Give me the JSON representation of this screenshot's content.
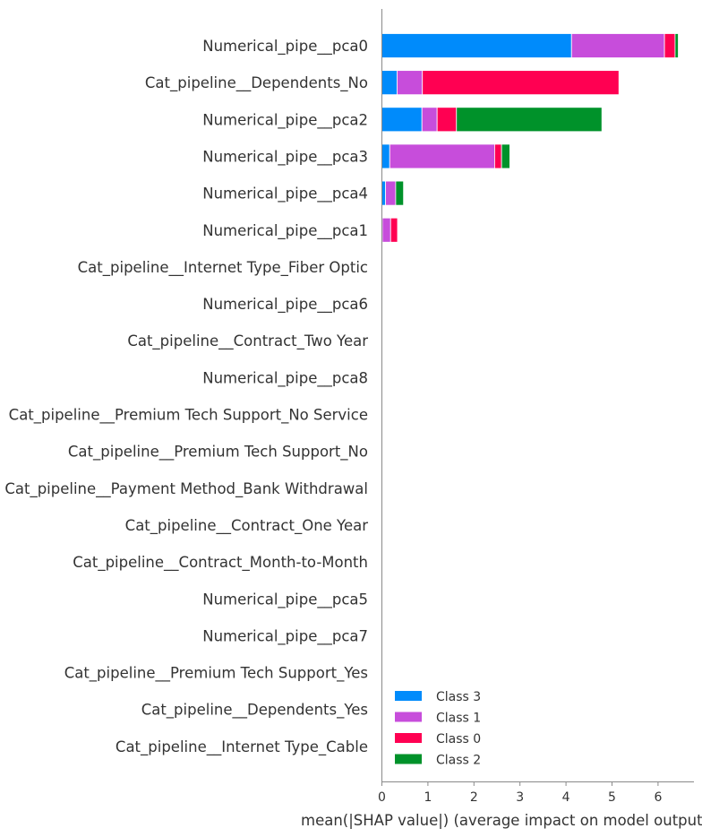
{
  "chart_data": {
    "type": "bar",
    "orientation": "horizontal",
    "stacked": true,
    "xlabel": "mean(|SHAP value|) (average impact on model output magnitude)",
    "ylabel": "",
    "title": "",
    "xlim": [
      0,
      6.8
    ],
    "xticks": [
      "0",
      "1",
      "2",
      "3",
      "4",
      "5",
      "6"
    ],
    "grid": false,
    "legend_position": "bottom-right",
    "categories": [
      "Numerical_pipe__pca0",
      "Cat_pipeline__Dependents_No",
      "Numerical_pipe__pca2",
      "Numerical_pipe__pca3",
      "Numerical_pipe__pca4",
      "Numerical_pipe__pca1",
      "Cat_pipeline__Internet Type_Fiber Optic",
      "Numerical_pipe__pca6",
      "Cat_pipeline__Contract_Two Year",
      "Numerical_pipe__pca8",
      "Cat_pipeline__Premium Tech Support_No Service",
      "Cat_pipeline__Premium Tech Support_No",
      "Cat_pipeline__Payment Method_Bank Withdrawal",
      "Cat_pipeline__Contract_One Year",
      "Cat_pipeline__Contract_Month-to-Month",
      "Numerical_pipe__pca5",
      "Numerical_pipe__pca7",
      "Cat_pipeline__Premium Tech Support_Yes",
      "Cat_pipeline__Dependents_Yes",
      "Cat_pipeline__Internet Type_Cable"
    ],
    "series": [
      {
        "name": "Class 3",
        "color": "#008bfb",
        "values": [
          4.12,
          0.33,
          0.87,
          0.17,
          0.08,
          0.01,
          0,
          0,
          0,
          0,
          0,
          0,
          0,
          0,
          0,
          0,
          0,
          0,
          0,
          0
        ]
      },
      {
        "name": "Class 1",
        "color": "#c74ddb",
        "values": [
          2.02,
          0.55,
          0.33,
          2.28,
          0.22,
          0.18,
          0,
          0,
          0,
          0,
          0,
          0,
          0,
          0,
          0,
          0,
          0,
          0,
          0,
          0
        ]
      },
      {
        "name": "Class 0",
        "color": "#ff0052",
        "values": [
          0.23,
          4.27,
          0.42,
          0.15,
          0.0,
          0.15,
          0,
          0,
          0,
          0,
          0,
          0,
          0,
          0,
          0,
          0,
          0,
          0,
          0,
          0
        ]
      },
      {
        "name": "Class 2",
        "color": "#00922a",
        "values": [
          0.07,
          0.0,
          3.16,
          0.18,
          0.17,
          0.0,
          0,
          0,
          0,
          0,
          0,
          0,
          0,
          0,
          0,
          0,
          0,
          0,
          0,
          0
        ]
      }
    ],
    "legend_order": [
      "Class 3",
      "Class 1",
      "Class 0",
      "Class 2"
    ]
  }
}
